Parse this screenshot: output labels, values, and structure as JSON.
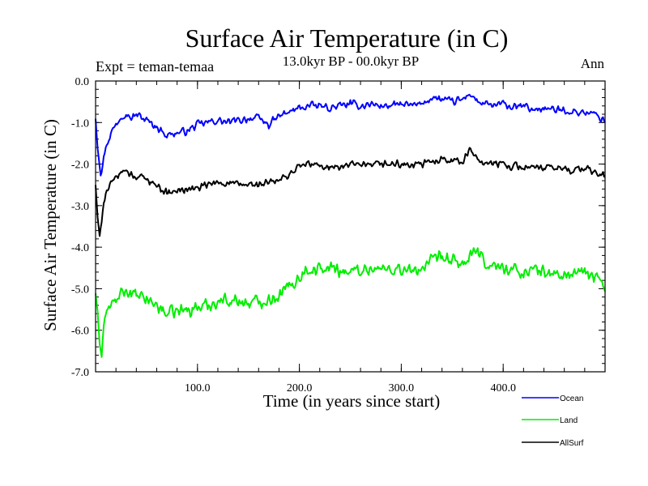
{
  "chart_data": {
    "type": "line",
    "title": "Surface Air Temperature (in C)",
    "subtitle": "13.0kyr BP - 00.0kyr BP",
    "left_label": "Expt = teman-temaa",
    "right_label": "Ann",
    "xlabel": "Time (in years since start)",
    "ylabel": "Surface Air Temperature (in C)",
    "xlim": [
      0,
      500
    ],
    "ylim": [
      -7.0,
      0.0
    ],
    "x_ticks": [
      {
        "value": 100,
        "label": "100.0"
      },
      {
        "value": 200,
        "label": "200.0"
      },
      {
        "value": 300,
        "label": "300.0"
      },
      {
        "value": 400,
        "label": "400.0"
      }
    ],
    "y_ticks": [
      {
        "value": 0,
        "label": "0.0"
      },
      {
        "value": -1,
        "label": "-1.0"
      },
      {
        "value": -2,
        "label": "-2.0"
      },
      {
        "value": -3,
        "label": "-3.0"
      },
      {
        "value": -4,
        "label": "-4.0"
      },
      {
        "value": -5,
        "label": "-5.0"
      },
      {
        "value": -6,
        "label": "-6.0"
      },
      {
        "value": -7,
        "label": "-7.0"
      }
    ],
    "legend_position": "bottom-right",
    "series": [
      {
        "name": "Ocean",
        "color": "#0000ff",
        "x": [
          0,
          2,
          5,
          10,
          15,
          20,
          25,
          30,
          35,
          40,
          50,
          60,
          70,
          80,
          90,
          100,
          110,
          120,
          130,
          140,
          150,
          160,
          170,
          180,
          190,
          200,
          210,
          220,
          230,
          240,
          250,
          260,
          270,
          280,
          290,
          300,
          310,
          320,
          330,
          340,
          350,
          360,
          368,
          375,
          380,
          390,
          400,
          410,
          420,
          430,
          440,
          450,
          460,
          470,
          480,
          490,
          500
        ],
        "values": [
          -0.9,
          -1.6,
          -2.25,
          -1.6,
          -1.25,
          -1.05,
          -0.85,
          -0.75,
          -0.9,
          -0.8,
          -0.95,
          -1.1,
          -1.3,
          -1.25,
          -1.2,
          -1.05,
          -1.0,
          -0.95,
          -1.0,
          -0.95,
          -0.9,
          -0.9,
          -1.05,
          -0.85,
          -0.75,
          -0.65,
          -0.6,
          -0.6,
          -0.65,
          -0.6,
          -0.55,
          -0.6,
          -0.55,
          -0.6,
          -0.6,
          -0.55,
          -0.6,
          -0.55,
          -0.4,
          -0.45,
          -0.5,
          -0.45,
          -0.3,
          -0.5,
          -0.55,
          -0.6,
          -0.55,
          -0.65,
          -0.6,
          -0.7,
          -0.65,
          -0.7,
          -0.7,
          -0.75,
          -0.75,
          -0.8,
          -0.95
        ]
      },
      {
        "name": "Land",
        "color": "#00ee00",
        "x": [
          0,
          2,
          4,
          6,
          8,
          10,
          15,
          20,
          25,
          30,
          35,
          40,
          50,
          60,
          70,
          80,
          90,
          100,
          110,
          120,
          130,
          140,
          150,
          160,
          170,
          180,
          190,
          200,
          210,
          220,
          230,
          240,
          250,
          260,
          270,
          280,
          290,
          300,
          310,
          320,
          330,
          340,
          350,
          360,
          370,
          375,
          380,
          390,
          400,
          410,
          420,
          430,
          440,
          450,
          460,
          470,
          480,
          490,
          500
        ],
        "values": [
          -5.1,
          -5.6,
          -6.3,
          -6.6,
          -5.9,
          -5.6,
          -5.4,
          -5.3,
          -5.15,
          -5.05,
          -5.1,
          -5.2,
          -5.25,
          -5.4,
          -5.6,
          -5.55,
          -5.5,
          -5.45,
          -5.4,
          -5.3,
          -5.25,
          -5.3,
          -5.35,
          -5.3,
          -5.25,
          -5.15,
          -4.95,
          -4.7,
          -4.5,
          -4.55,
          -4.5,
          -4.55,
          -4.6,
          -4.55,
          -4.5,
          -4.55,
          -4.5,
          -4.55,
          -4.6,
          -4.5,
          -4.35,
          -4.25,
          -4.35,
          -4.4,
          -4.2,
          -4.1,
          -4.35,
          -4.45,
          -4.5,
          -4.55,
          -4.6,
          -4.55,
          -4.6,
          -4.65,
          -4.7,
          -4.6,
          -4.65,
          -4.7,
          -4.9
        ]
      },
      {
        "name": "AllSurf",
        "color": "#000000",
        "x": [
          0,
          2,
          4,
          6,
          8,
          10,
          15,
          20,
          25,
          30,
          35,
          40,
          50,
          60,
          70,
          80,
          90,
          100,
          110,
          120,
          130,
          140,
          150,
          160,
          170,
          180,
          190,
          200,
          210,
          220,
          230,
          240,
          250,
          260,
          270,
          280,
          290,
          300,
          310,
          320,
          330,
          340,
          350,
          360,
          368,
          375,
          380,
          390,
          400,
          410,
          420,
          430,
          440,
          450,
          460,
          470,
          480,
          490,
          500
        ],
        "values": [
          -2.5,
          -3.3,
          -3.75,
          -3.3,
          -2.9,
          -2.7,
          -2.5,
          -2.35,
          -2.2,
          -2.15,
          -2.25,
          -2.3,
          -2.35,
          -2.5,
          -2.7,
          -2.65,
          -2.6,
          -2.6,
          -2.5,
          -2.45,
          -2.45,
          -2.5,
          -2.5,
          -2.5,
          -2.45,
          -2.4,
          -2.25,
          -2.05,
          -2.0,
          -2.05,
          -2.05,
          -2.1,
          -2.0,
          -2.05,
          -2.05,
          -2.0,
          -2.0,
          -2.0,
          -2.05,
          -2.0,
          -1.95,
          -1.85,
          -1.9,
          -1.95,
          -1.65,
          -1.85,
          -1.95,
          -2.0,
          -2.0,
          -2.05,
          -2.05,
          -2.1,
          -2.1,
          -2.1,
          -2.1,
          -2.15,
          -2.1,
          -2.2,
          -2.3
        ]
      }
    ]
  }
}
